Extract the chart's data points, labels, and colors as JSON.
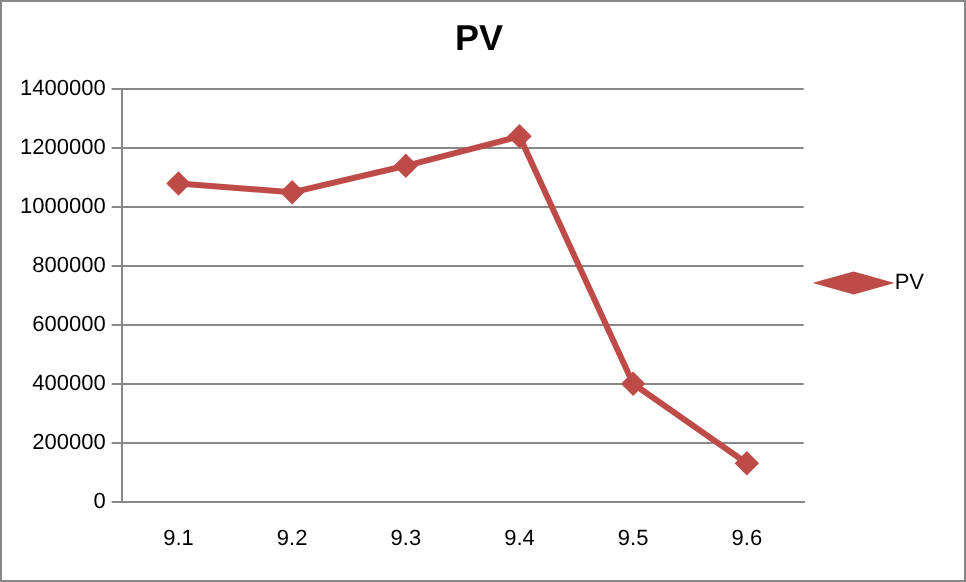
{
  "chart_data": {
    "type": "line",
    "title": "PV",
    "categories": [
      "9.1",
      "9.2",
      "9.3",
      "9.4",
      "9.5",
      "9.6"
    ],
    "series": [
      {
        "name": "PV",
        "color": "#be4b48",
        "values": [
          1080000,
          1050000,
          1140000,
          1240000,
          400000,
          130000
        ]
      }
    ],
    "ylim": [
      0,
      1400000
    ],
    "yticks": [
      0,
      200000,
      400000,
      600000,
      800000,
      1000000,
      1200000,
      1400000
    ],
    "grid": "y",
    "legend": "right",
    "marker": "diamond"
  }
}
